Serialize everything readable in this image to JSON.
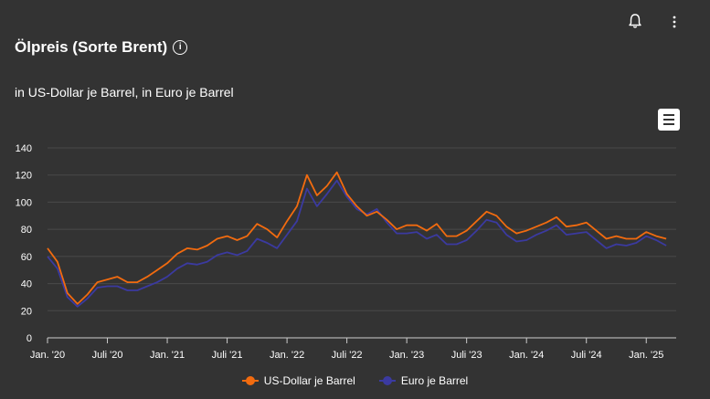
{
  "header": {
    "title": "Ölpreis (Sorte Brent)",
    "info_icon": "info-icon",
    "bell_icon": "bell-icon",
    "more_icon": "more-vertical-icon"
  },
  "subtitle": "in US-Dollar je Barrel, in Euro je Barrel",
  "toolbar": {
    "menu_icon": "hamburger-menu-icon"
  },
  "chart_data": {
    "type": "line",
    "title": "Ölpreis (Sorte Brent)",
    "subtitle": "in US-Dollar je Barrel, in Euro je Barrel",
    "ylim": [
      0,
      140
    ],
    "yticks": [
      0,
      20,
      40,
      60,
      80,
      100,
      120,
      140
    ],
    "xticks": [
      {
        "label": "Jan. '20",
        "x": "2020-01"
      },
      {
        "label": "Juli '20",
        "x": "2020-07"
      },
      {
        "label": "Jan. '21",
        "x": "2021-01"
      },
      {
        "label": "Juli '21",
        "x": "2021-07"
      },
      {
        "label": "Jan. '22",
        "x": "2022-01"
      },
      {
        "label": "Juli '22",
        "x": "2022-07"
      },
      {
        "label": "Jan. '23",
        "x": "2023-01"
      },
      {
        "label": "Juli '23",
        "x": "2023-07"
      },
      {
        "label": "Jan. '24",
        "x": "2024-01"
      },
      {
        "label": "Juli '24",
        "x": "2024-07"
      },
      {
        "label": "Jan. '25",
        "x": "2025-01"
      }
    ],
    "grid": true,
    "legend_position": "bottom-center",
    "x": [
      "2020-01",
      "2020-02",
      "2020-03",
      "2020-04",
      "2020-05",
      "2020-06",
      "2020-07",
      "2020-08",
      "2020-09",
      "2020-10",
      "2020-11",
      "2020-12",
      "2021-01",
      "2021-02",
      "2021-03",
      "2021-04",
      "2021-05",
      "2021-06",
      "2021-07",
      "2021-08",
      "2021-09",
      "2021-10",
      "2021-11",
      "2021-12",
      "2022-01",
      "2022-02",
      "2022-03",
      "2022-04",
      "2022-05",
      "2022-06",
      "2022-07",
      "2022-08",
      "2022-09",
      "2022-10",
      "2022-11",
      "2022-12",
      "2023-01",
      "2023-02",
      "2023-03",
      "2023-04",
      "2023-05",
      "2023-06",
      "2023-07",
      "2023-08",
      "2023-09",
      "2023-10",
      "2023-11",
      "2023-12",
      "2024-01",
      "2024-02",
      "2024-03",
      "2024-04",
      "2024-05",
      "2024-06",
      "2024-07",
      "2024-08",
      "2024-09",
      "2024-10",
      "2024-11",
      "2024-12",
      "2025-01",
      "2025-02",
      "2025-03"
    ],
    "series": [
      {
        "name": "US-Dollar je Barrel",
        "color": "#f26b0f",
        "values": [
          66,
          56,
          33,
          25,
          32,
          41,
          43,
          45,
          41,
          41,
          45,
          50,
          55,
          62,
          66,
          65,
          68,
          73,
          75,
          72,
          75,
          84,
          80,
          74,
          86,
          97,
          120,
          105,
          112,
          122,
          106,
          97,
          90,
          93,
          87,
          80,
          83,
          83,
          79,
          84,
          75,
          75,
          79,
          86,
          93,
          90,
          82,
          77,
          79,
          82,
          85,
          89,
          82,
          83,
          85,
          79,
          73,
          75,
          73,
          73,
          78,
          75,
          73
        ]
      },
      {
        "name": "Euro je Barrel",
        "color": "#3b3aa0",
        "values": [
          60,
          51,
          30,
          23,
          29,
          37,
          38,
          38,
          35,
          35,
          38,
          41,
          45,
          51,
          55,
          54,
          56,
          61,
          63,
          61,
          64,
          73,
          70,
          66,
          76,
          86,
          110,
          97,
          106,
          116,
          104,
          95,
          91,
          95,
          85,
          77,
          77,
          78,
          73,
          76,
          69,
          69,
          72,
          79,
          87,
          85,
          76,
          71,
          72,
          76,
          79,
          83,
          76,
          77,
          78,
          72,
          66,
          69,
          68,
          70,
          75,
          72,
          68
        ]
      }
    ]
  }
}
